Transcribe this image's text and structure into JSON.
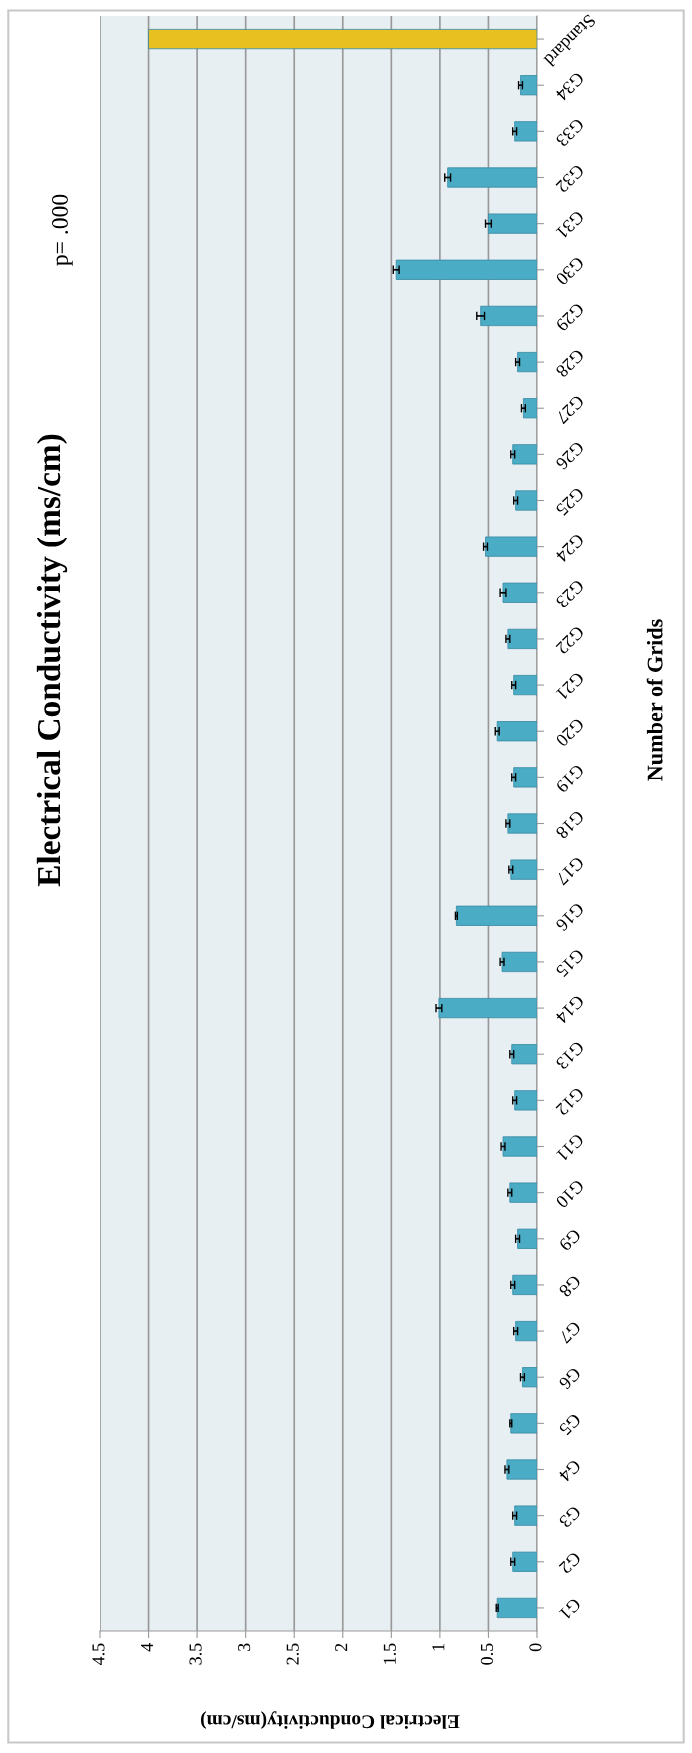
{
  "chart_data": {
    "type": "bar",
    "orientation": "horizontal",
    "title": "Electrical Conductivity (ms/cm)",
    "xlabel": "Electrical Conductivity(ms/cm)",
    "ylabel": "Number of Grids",
    "categories": [
      "Standard",
      "G34",
      "G33",
      "G32",
      "G31",
      "G30",
      "G29",
      "G28",
      "G27",
      "G26",
      "G25",
      "G24",
      "G23",
      "G22",
      "G21",
      "G20",
      "G19",
      "G18",
      "G17",
      "G16",
      "G15",
      "G14",
      "G13",
      "G12",
      "G11",
      "G10",
      "G9",
      "G8",
      "G7",
      "G6",
      "G5",
      "G4",
      "G3",
      "G2",
      "G1"
    ],
    "values": [
      4.0,
      0.17,
      0.23,
      0.92,
      0.5,
      1.45,
      0.58,
      0.2,
      0.14,
      0.25,
      0.22,
      0.53,
      0.35,
      0.3,
      0.24,
      0.41,
      0.24,
      0.3,
      0.27,
      0.83,
      0.36,
      1.01,
      0.26,
      0.23,
      0.35,
      0.28,
      0.2,
      0.25,
      0.22,
      0.15,
      0.27,
      0.31,
      0.23,
      0.25,
      0.41
    ],
    "errors": [
      null,
      0.02,
      0.02,
      0.03,
      0.03,
      0.03,
      0.04,
      0.02,
      0.02,
      0.02,
      0.02,
      0.02,
      0.03,
      0.02,
      0.02,
      0.02,
      0.02,
      0.02,
      0.02,
      0.01,
      0.02,
      0.03,
      0.02,
      0.02,
      0.02,
      0.02,
      0.02,
      0.02,
      0.02,
      0.02,
      0.01,
      0.02,
      0.02,
      0.02,
      0.01
    ],
    "colors": [
      "#e8c020",
      "#4bacc6",
      "#4bacc6",
      "#4bacc6",
      "#4bacc6",
      "#4bacc6",
      "#4bacc6",
      "#4bacc6",
      "#4bacc6",
      "#4bacc6",
      "#4bacc6",
      "#4bacc6",
      "#4bacc6",
      "#4bacc6",
      "#4bacc6",
      "#4bacc6",
      "#4bacc6",
      "#4bacc6",
      "#4bacc6",
      "#4bacc6",
      "#4bacc6",
      "#4bacc6",
      "#4bacc6",
      "#4bacc6",
      "#4bacc6",
      "#4bacc6",
      "#4bacc6",
      "#4bacc6",
      "#4bacc6",
      "#4bacc6",
      "#4bacc6",
      "#4bacc6",
      "#4bacc6",
      "#4bacc6",
      "#4bacc6"
    ],
    "xlim": [
      4.5,
      0
    ],
    "xticks": [
      0,
      0.5,
      1,
      1.5,
      2,
      2.5,
      3,
      3.5,
      4,
      4.5
    ],
    "grid": "x",
    "annotations": [
      "p= .000"
    ]
  }
}
